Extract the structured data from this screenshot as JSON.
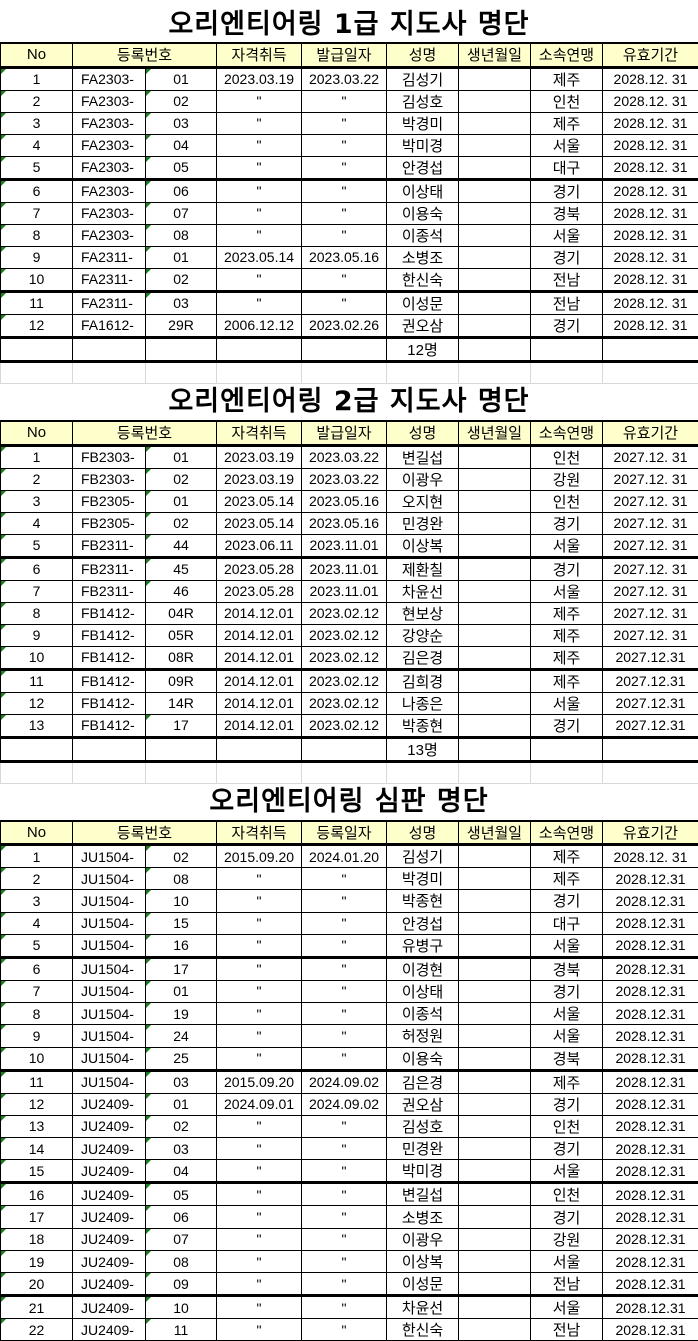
{
  "columns": [
    "No",
    "등록번호",
    "자격취득",
    "발급일자",
    "성명",
    "생년월일",
    "소속연맹",
    "유효기간"
  ],
  "sections": [
    {
      "title": "오리엔티어링 1급 지도사 명단",
      "columns": [
        "No",
        "등록번호",
        "자격취득",
        "발급일자",
        "성명",
        "생년월일",
        "소속연맹",
        "유효기간"
      ],
      "total": "12명",
      "rows": [
        [
          "1",
          "FA2303-",
          "01",
          "2023.03.19",
          "2023.03.22",
          "김성기",
          "",
          "제주",
          "2028.12. 31"
        ],
        [
          "2",
          "FA2303-",
          "02",
          "\"",
          "\"",
          "김성호",
          "",
          "인천",
          "2028.12. 31"
        ],
        [
          "3",
          "FA2303-",
          "03",
          "\"",
          "\"",
          "박경미",
          "",
          "제주",
          "2028.12. 31"
        ],
        [
          "4",
          "FA2303-",
          "04",
          "\"",
          "\"",
          "박미경",
          "",
          "서울",
          "2028.12. 31"
        ],
        [
          "5",
          "FA2303-",
          "05",
          "\"",
          "\"",
          "안경섭",
          "",
          "대구",
          "2028.12. 31"
        ],
        [
          "6",
          "FA2303-",
          "06",
          "\"",
          "\"",
          "이상태",
          "",
          "경기",
          "2028.12. 31"
        ],
        [
          "7",
          "FA2303-",
          "07",
          "\"",
          "\"",
          "이용숙",
          "",
          "경북",
          "2028.12. 31"
        ],
        [
          "8",
          "FA2303-",
          "08",
          "\"",
          "\"",
          "이종석",
          "",
          "서울",
          "2028.12. 31"
        ],
        [
          "9",
          "FA2311-",
          "01",
          "2023.05.14",
          "2023.05.16",
          "소병조",
          "",
          "경기",
          "2028.12. 31"
        ],
        [
          "10",
          "FA2311-",
          "02",
          "\"",
          "\"",
          "한신숙",
          "",
          "전남",
          "2028.12. 31"
        ],
        [
          "11",
          "FA2311-",
          "03",
          "\"",
          "\"",
          "이성문",
          "",
          "전남",
          "2028.12. 31"
        ],
        [
          "12",
          "FA1612-",
          "29R",
          "2006.12.12",
          "2023.02.26",
          "권오삼",
          "",
          "경기",
          "2028.12. 31"
        ]
      ]
    },
    {
      "title": "오리엔티어링 2급 지도사 명단",
      "columns": [
        "No",
        "등록번호",
        "자격취득",
        "발급일자",
        "성명",
        "생년월일",
        "소속연맹",
        "유효기간"
      ],
      "total": "13명",
      "rows": [
        [
          "1",
          "FB2303-",
          "01",
          "2023.03.19",
          "2023.03.22",
          "변길섭",
          "",
          "인천",
          "2027.12. 31"
        ],
        [
          "2",
          "FB2303-",
          "02",
          "2023.03.19",
          "2023.03.22",
          "이광우",
          "",
          "강원",
          "2027.12. 31"
        ],
        [
          "3",
          "FB2305-",
          "01",
          "2023.05.14",
          "2023.05.16",
          "오지현",
          "",
          "인천",
          "2027.12. 31"
        ],
        [
          "4",
          "FB2305-",
          "02",
          "2023.05.14",
          "2023.05.16",
          "민경완",
          "",
          "경기",
          "2027.12. 31"
        ],
        [
          "5",
          "FB2311-",
          "44",
          "2023.06.11",
          "2023.11.01",
          "이상복",
          "",
          "서울",
          "2027.12. 31"
        ],
        [
          "6",
          "FB2311-",
          "45",
          "2023.05.28",
          "2023.11.01",
          "제환칠",
          "",
          "경기",
          "2027.12. 31"
        ],
        [
          "7",
          "FB2311-",
          "46",
          "2023.05.28",
          "2023.11.01",
          "차윤선",
          "",
          "서울",
          "2027.12. 31"
        ],
        [
          "8",
          "FB1412-",
          "04R",
          "2014.12.01",
          "2023.02.12",
          "현보상",
          "",
          "제주",
          "2027.12. 31"
        ],
        [
          "9",
          "FB1412-",
          "05R",
          "2014.12.01",
          "2023.02.12",
          "강양순",
          "",
          "제주",
          "2027.12. 31"
        ],
        [
          "10",
          "FB1412-",
          "08R",
          "2014.12.01",
          "2023.02.12",
          "김은경",
          "",
          "제주",
          "2027.12.31"
        ],
        [
          "11",
          "FB1412-",
          "09R",
          "2014.12.01",
          "2023.02.12",
          "김희경",
          "",
          "제주",
          "2027.12.31"
        ],
        [
          "12",
          "FB1412-",
          "14R",
          "2014.12.01",
          "2023.02.12",
          "나종은",
          "",
          "서울",
          "2027.12.31"
        ],
        [
          "13",
          "FB1412-",
          "17",
          "2014.12.01",
          "2023.02.12",
          "박종현",
          "",
          "경기",
          "2027.12.31"
        ]
      ]
    },
    {
      "title": "오리엔티어링 심판 명단",
      "columns": [
        "No",
        "등록번호",
        "자격취득",
        "등록일자",
        "성명",
        "생년월일",
        "소속연맹",
        "유효기간"
      ],
      "rows": [
        [
          "1",
          "JU1504-",
          "02",
          "2015.09.20",
          "2024.01.20",
          "김성기",
          "",
          "제주",
          "2028.12. 31"
        ],
        [
          "2",
          "JU1504-",
          "08",
          "\"",
          "\"",
          "박경미",
          "",
          "제주",
          "2028.12.31"
        ],
        [
          "3",
          "JU1504-",
          "10",
          "\"",
          "\"",
          "박종현",
          "",
          "경기",
          "2028.12.31"
        ],
        [
          "4",
          "JU1504-",
          "15",
          "\"",
          "\"",
          "안경섭",
          "",
          "대구",
          "2028.12.31"
        ],
        [
          "5",
          "JU1504-",
          "16",
          "\"",
          "\"",
          "유병구",
          "",
          "서울",
          "2028.12.31"
        ],
        [
          "6",
          "JU1504-",
          "17",
          "\"",
          "\"",
          "이경현",
          "",
          "경북",
          "2028.12.31"
        ],
        [
          "7",
          "JU1504-",
          "01",
          "\"",
          "\"",
          "이상태",
          "",
          "경기",
          "2028.12.31"
        ],
        [
          "8",
          "JU1504-",
          "19",
          "\"",
          "\"",
          "이종석",
          "",
          "서울",
          "2028.12.31"
        ],
        [
          "9",
          "JU1504-",
          "24",
          "\"",
          "\"",
          "허정원",
          "",
          "서울",
          "2028.12.31"
        ],
        [
          "10",
          "JU1504-",
          "25",
          "\"",
          "\"",
          "이용숙",
          "",
          "경북",
          "2028.12.31"
        ],
        [
          "11",
          "JU1504-",
          "03",
          "2015.09.20",
          "2024.09.02",
          "김은경",
          "",
          "제주",
          "2028.12.31"
        ],
        [
          "12",
          "JU2409-",
          "01",
          "2024.09.01",
          "2024.09.02",
          "권오삼",
          "",
          "경기",
          "2028.12.31"
        ],
        [
          "13",
          "JU2409-",
          "02",
          "\"",
          "\"",
          "김성호",
          "",
          "인천",
          "2028.12.31"
        ],
        [
          "14",
          "JU2409-",
          "03",
          "\"",
          "\"",
          "민경완",
          "",
          "경기",
          "2028.12.31"
        ],
        [
          "15",
          "JU2409-",
          "04",
          "\"",
          "\"",
          "박미경",
          "",
          "서울",
          "2028.12.31"
        ],
        [
          "16",
          "JU2409-",
          "05",
          "\"",
          "\"",
          "변길섭",
          "",
          "인천",
          "2028.12.31"
        ],
        [
          "17",
          "JU2409-",
          "06",
          "\"",
          "\"",
          "소병조",
          "",
          "경기",
          "2028.12.31"
        ],
        [
          "18",
          "JU2409-",
          "07",
          "\"",
          "\"",
          "이광우",
          "",
          "강원",
          "2028.12.31"
        ],
        [
          "19",
          "JU2409-",
          "08",
          "\"",
          "\"",
          "이상복",
          "",
          "서울",
          "2028.12.31"
        ],
        [
          "20",
          "JU2409-",
          "09",
          "\"",
          "\"",
          "이성문",
          "",
          "전남",
          "2028.12.31"
        ],
        [
          "21",
          "JU2409-",
          "10",
          "\"",
          "\"",
          "차윤선",
          "",
          "서울",
          "2028.12.31"
        ],
        [
          "22",
          "JU2409-",
          "11",
          "\"",
          "\"",
          "한신숙",
          "",
          "전남",
          "2028.12.31"
        ]
      ]
    }
  ],
  "colors": {
    "header_bg": "#ffffcc",
    "marker": "#1a7f1a"
  }
}
